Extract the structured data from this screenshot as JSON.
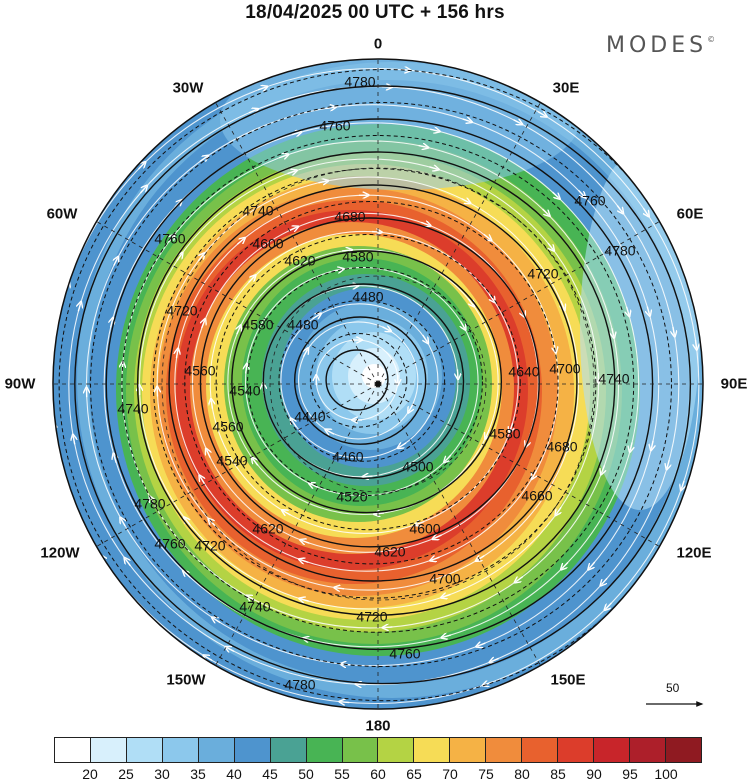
{
  "title": "18/04/2025  00 UTC  + 156 hrs",
  "brand": "MODES",
  "brand_mark": "©",
  "meridian_labels": {
    "n0": "0",
    "e30": "30E",
    "e60": "60E",
    "e90": "90E",
    "e120": "120E",
    "e150": "150E",
    "s180": "180",
    "w150": "150W",
    "w120": "120W",
    "w90": "90W",
    "w60": "60W",
    "w30": "30W"
  },
  "contour_labels": [
    "4780",
    "4760",
    "4740",
    "4720",
    "4700",
    "4680",
    "4660",
    "4640",
    "4620",
    "4600",
    "4580",
    "4560",
    "4540",
    "4520",
    "4500",
    "4480",
    "4460",
    "4440"
  ],
  "wind_scale": {
    "value": "50"
  },
  "legend": {
    "colors": [
      "#ffffff",
      "#d8f0fc",
      "#b0def6",
      "#8cc8ec",
      "#6aaedc",
      "#4e94ce",
      "#4aa294",
      "#48b454",
      "#78c14a",
      "#b4d344",
      "#f6dc56",
      "#f5b245",
      "#f08c3c",
      "#e8612e",
      "#dc3d2b",
      "#c8252a",
      "#ad1f2a",
      "#8f1a21"
    ],
    "ticks": [
      "20",
      "25",
      "30",
      "35",
      "40",
      "45",
      "50",
      "55",
      "60",
      "65",
      "70",
      "75",
      "80",
      "85",
      "90",
      "95",
      "100"
    ]
  },
  "map_overlay_icons": [
    "wind-streamline-arrows",
    "pole-marker"
  ]
}
